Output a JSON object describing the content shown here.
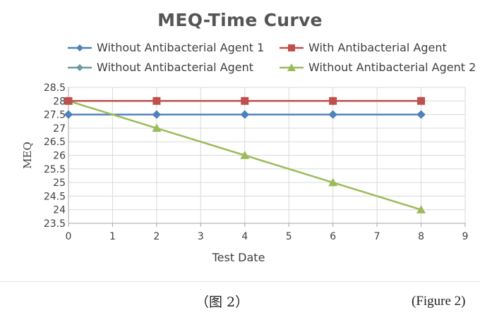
{
  "chart_data": {
    "type": "line",
    "title": "MEQ-Time Curve",
    "xlabel": "Test Date",
    "ylabel": "MEQ",
    "xlim": [
      0,
      9
    ],
    "ylim": [
      23.5,
      28.5
    ],
    "x_ticks": [
      "0",
      "1",
      "2",
      "3",
      "4",
      "5",
      "6",
      "7",
      "8",
      "9"
    ],
    "y_ticks": [
      "23.5",
      "24",
      "24.5",
      "25",
      "25.5",
      "26",
      "26.5",
      "27",
      "27.5",
      "28",
      "28.5"
    ],
    "grid": true,
    "legend_position": "top",
    "series": [
      {
        "name": "Without Antibacterial Agent 1",
        "color": "#4f81bd",
        "marker": "diamond",
        "x": [
          0,
          2,
          4,
          6,
          8
        ],
        "y": [
          27.5,
          27.5,
          27.5,
          27.5,
          27.5
        ]
      },
      {
        "name": "With Antibacterial Agent",
        "color": "#c0504d",
        "marker": "square",
        "x": [
          0,
          2,
          4,
          6,
          8
        ],
        "y": [
          28,
          28,
          28,
          28,
          28
        ]
      },
      {
        "name": "Without Antibacterial Agent",
        "color": "#6a9a9e",
        "marker": "diamond",
        "x": [
          0,
          2,
          4,
          6,
          8
        ],
        "y": [
          28,
          28,
          28,
          28,
          28
        ]
      },
      {
        "name": "Without Antibacterial Agent 2",
        "color": "#9bbb59",
        "marker": "triangle",
        "x": [
          0,
          2,
          4,
          6,
          8
        ],
        "y": [
          28,
          27,
          26,
          25,
          24
        ]
      }
    ]
  },
  "captions": {
    "left": "（图 2）",
    "right": "(Figure 2)"
  }
}
